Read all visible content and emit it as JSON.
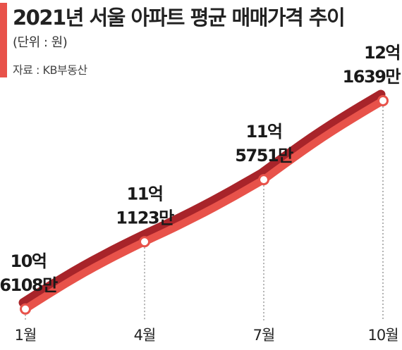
{
  "header": {
    "title": "2021년 서울 아파트 평균 매매가격 추이",
    "subtitle": "(단위 : 원)",
    "source": "자료 : KB부동산",
    "accent_color": "#e8524a"
  },
  "chart_data": {
    "type": "line",
    "title": "2021년 서울 아파트 평균 매매가격 추이",
    "unit": "(단위 : 원)",
    "source": "자료 : KB부동산",
    "categories": [
      "1월",
      "4월",
      "7월",
      "10월"
    ],
    "values": [
      1061080000,
      1111230000,
      1157510000,
      1216390000
    ],
    "data_labels": [
      [
        "10억",
        "6108만"
      ],
      [
        "11억",
        "1123만"
      ],
      [
        "11억",
        "5751만"
      ],
      [
        "12억",
        "1639만"
      ]
    ],
    "ylim": [
      1030000000,
      1240000000
    ],
    "grid": false,
    "legend": "none",
    "colors": {
      "line": "#e8524a",
      "line_shadow": "#a8242a",
      "marker_fill": "#ffffff",
      "guide": "#666666"
    }
  }
}
